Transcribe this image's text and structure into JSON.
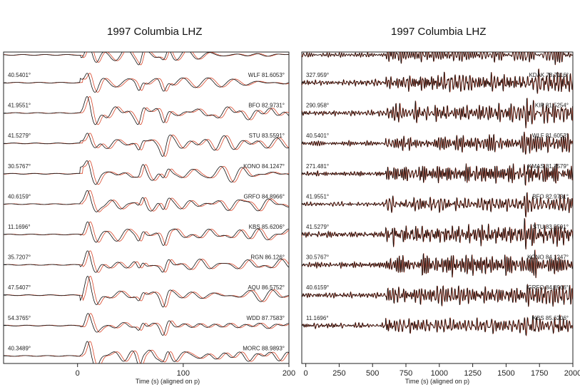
{
  "chart_data": [
    {
      "type": "line",
      "title": "1997 Columbia LHZ",
      "xlabel": "Time (s) (aligned on p)",
      "xticks": [
        0,
        100,
        200
      ],
      "xlim": [
        -70,
        200
      ],
      "series_colors": {
        "observed": "#111111",
        "synthetic": "#d9472b"
      },
      "traces": [
        {
          "left": "40.5401°",
          "right": "WLF 81.6053°"
        },
        {
          "left": "41.9551°",
          "right": "BFO 82.9731°"
        },
        {
          "left": "41.5279°",
          "right": "STU 83.5591°"
        },
        {
          "left": "30.5767°",
          "right": "KONO 84.1247°"
        },
        {
          "left": "40.6159°",
          "right": "GRFO 84.8966°"
        },
        {
          "left": "11.1696°",
          "right": "KBS 85.6206°"
        },
        {
          "left": "35.7207°",
          "right": "RGN 86.126°"
        },
        {
          "left": "47.5407°",
          "right": "AQU 86.5752°"
        },
        {
          "left": "54.3765°",
          "right": "WDD 87.7583°"
        },
        {
          "left": "40.3489°",
          "right": "MORC 88.9893°"
        }
      ]
    },
    {
      "type": "line",
      "title": "1997 Columbia LHZ",
      "xlabel": "Time (s) (aligned on p)",
      "xticks": [
        0,
        250,
        500,
        750,
        1000,
        1250,
        1500,
        1750,
        2000
      ],
      "xlim": [
        -30,
        2000
      ],
      "series_colors": {
        "observed": "#111111",
        "synthetic": "#d9472b"
      },
      "traces": [
        {
          "left": "327.959°",
          "right": "KDAK 78.7116°"
        },
        {
          "left": "290.958°",
          "right": "KIP 81.5254°"
        },
        {
          "left": "40.5401°",
          "right": "WLF 81.6053°"
        },
        {
          "left": "271.481°",
          "right": "KMAS 81.7579°"
        },
        {
          "left": "41.9551°",
          "right": "BFO 82.9731°"
        },
        {
          "left": "41.5279°",
          "right": "STU 83.5591°"
        },
        {
          "left": "30.5767°",
          "right": "KONO 84.1247°"
        },
        {
          "left": "40.6159°",
          "right": "GRFO 84.8966°"
        },
        {
          "left": "11.1696°",
          "right": "KBS 85.6206°"
        }
      ]
    }
  ]
}
